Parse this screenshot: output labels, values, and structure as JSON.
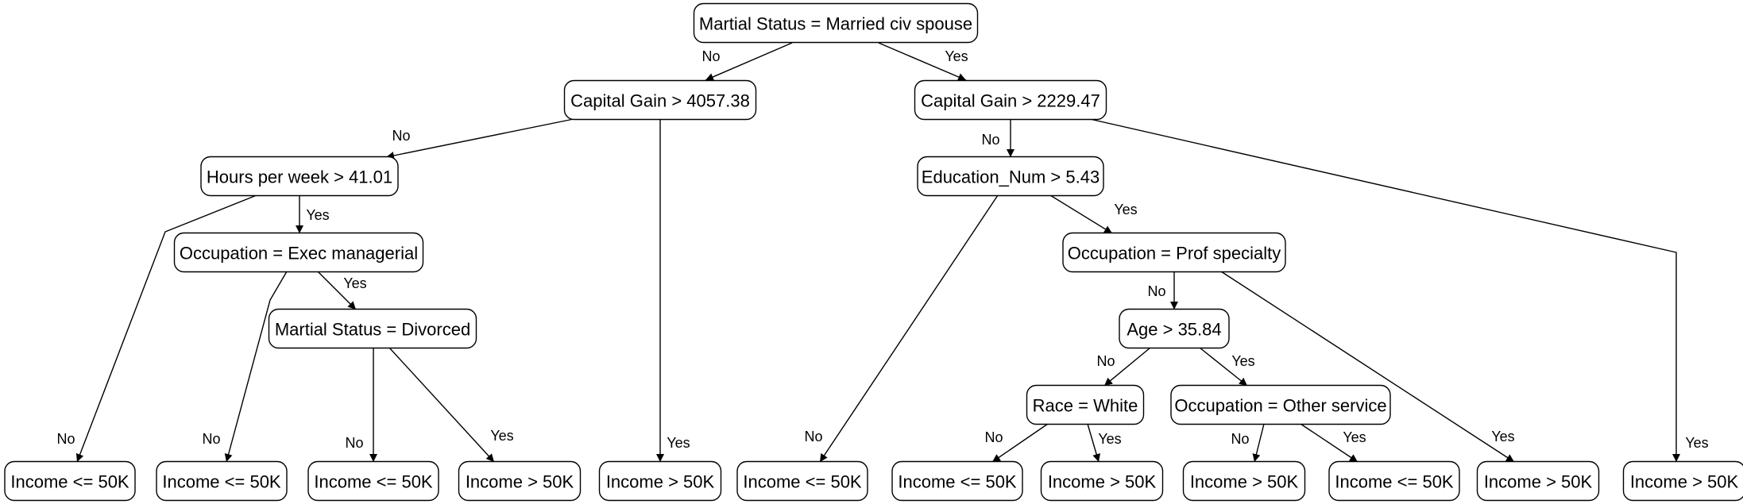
{
  "colors": {
    "background": "#ffffff",
    "stroke": "#000000",
    "text": "#000000"
  },
  "tree": {
    "nodes": {
      "root": "Martial Status = Married civ spouse",
      "cg_left": "Capital Gain > 4057.38",
      "cg_right": "Capital Gain > 2229.47",
      "hours": "Hours per week > 41.01",
      "edu": "Education_Num > 5.43",
      "occ_exec": "Occupation = Exec managerial",
      "occ_prof": "Occupation = Prof specialty",
      "ms_div": "Martial Status = Divorced",
      "age": "Age > 35.84",
      "race": "Race = White",
      "occ_other": "Occupation = Other service",
      "l1": "Income <= 50K",
      "l2": "Income <= 50K",
      "l3": "Income <= 50K",
      "l4": "Income > 50K",
      "l5": "Income > 50K",
      "l6": "Income <= 50K",
      "l7": "Income <= 50K",
      "l8": "Income > 50K",
      "l9": "Income > 50K",
      "l10": "Income <= 50K",
      "l11": "Income > 50K",
      "l12": "Income > 50K"
    },
    "edges": {
      "root_cg_left": "No",
      "root_cg_right": "Yes",
      "cg_left_hours": "No",
      "cg_left_l5": "Yes",
      "cg_right_edu": "No",
      "cg_right_l12": "Yes",
      "hours_l1": "No",
      "hours_occ_exec": "Yes",
      "occ_exec_l2": "No",
      "occ_exec_ms_div": "Yes",
      "ms_div_l3": "No",
      "ms_div_l4": "Yes",
      "edu_l6": "No",
      "edu_occ_prof": "Yes",
      "occ_prof_age": "No",
      "occ_prof_l11": "Yes",
      "age_race": "No",
      "age_occ_other": "Yes",
      "race_l7": "No",
      "race_l8": "Yes",
      "occ_other_l9": "No",
      "occ_other_l10": "Yes"
    }
  }
}
